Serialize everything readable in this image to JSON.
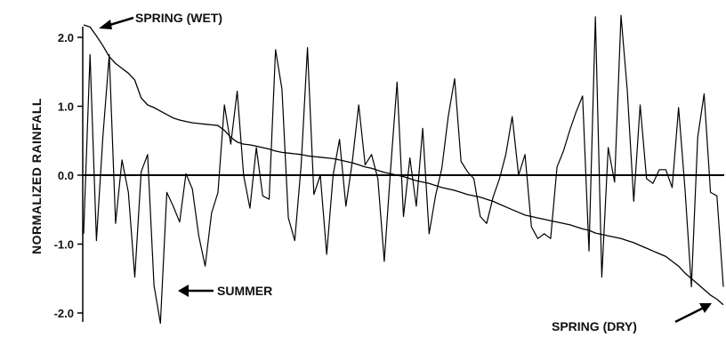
{
  "chart_data": {
    "type": "line",
    "title": "",
    "xlabel": "",
    "ylabel": "NORMALIZED RAINFALL",
    "ylim": [
      -2.2,
      2.2
    ],
    "yticks": [
      2.0,
      1.0,
      0.0,
      -1.0,
      -2.0
    ],
    "ytick_labels": [
      "2.0",
      "1.0",
      "0.0",
      "-1.0",
      "-2.0"
    ],
    "grid": false,
    "legend": "none",
    "series": [
      {
        "values": [
          -0.85,
          1.75,
          -0.95,
          0.55,
          1.75,
          -0.7,
          0.22,
          -0.25,
          -1.48,
          0.05,
          0.3,
          -1.6,
          -2.15,
          -0.25,
          -0.45,
          -0.68,
          0.02,
          -0.2,
          -0.88,
          -1.32,
          -0.55,
          -0.25,
          1.02,
          0.45,
          1.22,
          0.0,
          -0.48,
          0.4,
          -0.3,
          -0.35,
          1.82,
          1.25,
          -0.62,
          -0.95,
          0.15,
          1.85,
          -0.28,
          0.0,
          -1.15,
          0.0,
          0.52,
          -0.45,
          0.2,
          1.02,
          0.15,
          0.3,
          -0.05,
          -1.25,
          0.1,
          1.35,
          -0.6,
          0.25,
          -0.45,
          0.68,
          -0.85,
          -0.3,
          0.1,
          0.85,
          1.4,
          0.2,
          0.05,
          -0.05,
          -0.6,
          -0.7,
          -0.32,
          -0.05,
          0.3,
          0.85,
          0.0,
          0.3,
          -0.75,
          -0.92,
          -0.85,
          -0.92,
          0.12,
          0.35,
          0.65,
          0.92,
          1.15,
          -1.1,
          2.3,
          -1.48,
          0.4,
          -0.1,
          2.32,
          1.22,
          -0.38,
          1.02,
          -0.05,
          -0.12,
          0.08,
          0.08,
          -0.18,
          0.98,
          -0.2,
          -1.62,
          0.55,
          1.18,
          -0.25,
          -0.3,
          -1.62
        ]
      },
      {
        "values": [
          2.18,
          2.15,
          2.02,
          1.88,
          1.72,
          1.62,
          1.55,
          1.48,
          1.38,
          1.12,
          1.02,
          0.98,
          0.93,
          0.88,
          0.83,
          0.8,
          0.78,
          0.76,
          0.75,
          0.74,
          0.73,
          0.72,
          0.65,
          0.55,
          0.48,
          0.45,
          0.44,
          0.42,
          0.4,
          0.38,
          0.35,
          0.33,
          0.32,
          0.31,
          0.3,
          0.28,
          0.27,
          0.26,
          0.25,
          0.24,
          0.22,
          0.2,
          0.18,
          0.15,
          0.12,
          0.1,
          0.07,
          0.04,
          0.02,
          0.0,
          -0.02,
          -0.05,
          -0.08,
          -0.1,
          -0.12,
          -0.15,
          -0.18,
          -0.2,
          -0.22,
          -0.25,
          -0.28,
          -0.3,
          -0.32,
          -0.35,
          -0.38,
          -0.42,
          -0.46,
          -0.5,
          -0.54,
          -0.58,
          -0.6,
          -0.62,
          -0.64,
          -0.66,
          -0.68,
          -0.7,
          -0.72,
          -0.75,
          -0.78,
          -0.8,
          -0.84,
          -0.86,
          -0.88,
          -0.9,
          -0.92,
          -0.95,
          -0.98,
          -1.02,
          -1.06,
          -1.1,
          -1.14,
          -1.18,
          -1.25,
          -1.32,
          -1.42,
          -1.5,
          -1.58,
          -1.66,
          -1.74,
          -1.8,
          -1.88
        ]
      }
    ],
    "annotations": [
      {
        "text": "SPRING (WET)"
      },
      {
        "text": "SUMMER"
      },
      {
        "text": "SPRING (DRY)"
      }
    ]
  }
}
